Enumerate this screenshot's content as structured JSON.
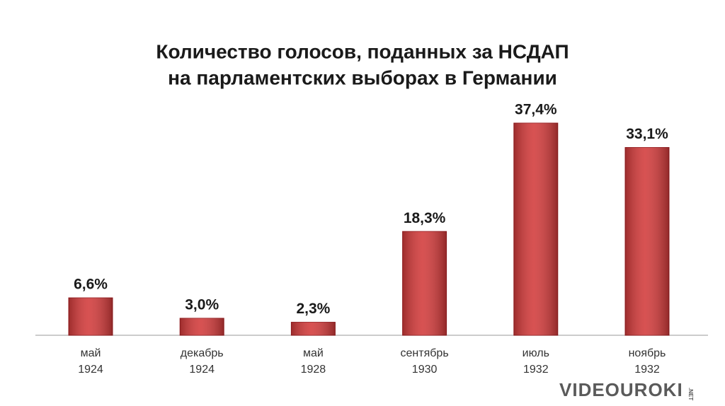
{
  "chart_data": {
    "type": "bar",
    "title": [
      "Количество голосов, поданных за НСДАП",
      "на парламентских выборах в Германии"
    ],
    "categories": [
      [
        "май",
        "1924"
      ],
      [
        "декабрь",
        "1924"
      ],
      [
        "май",
        "1928"
      ],
      [
        "сентябрь",
        "1930"
      ],
      [
        "июль",
        "1932"
      ],
      [
        "ноябрь",
        "1932"
      ]
    ],
    "values": [
      6.6,
      3.0,
      2.3,
      18.3,
      37.4,
      33.1
    ],
    "value_labels": [
      "6,6%",
      "3,0%",
      "2,3%",
      "18,3%",
      "37,4%",
      "33,1%"
    ],
    "color": "#d23a3a"
  },
  "watermark": [
    "VIDEOUROKI",
    ".NET"
  ]
}
